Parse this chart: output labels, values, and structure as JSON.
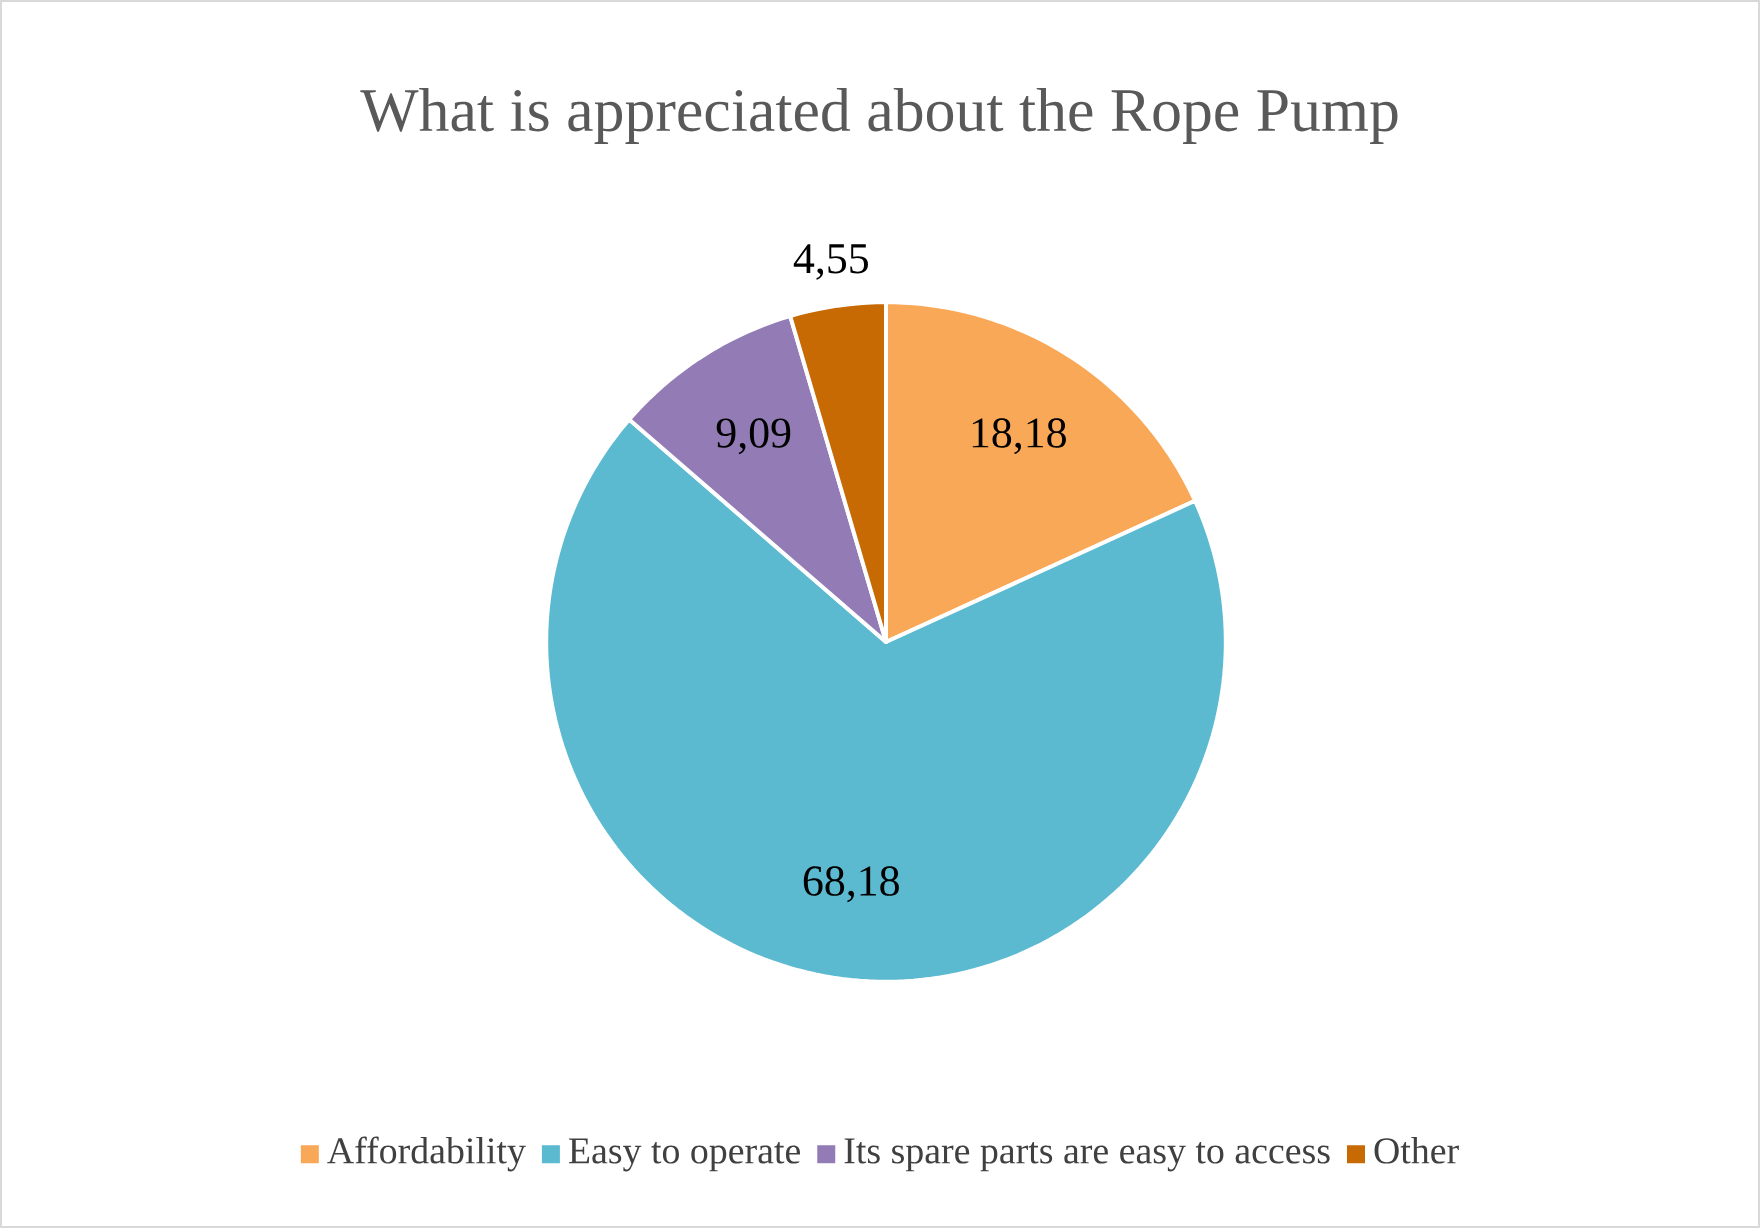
{
  "chart_data": {
    "type": "pie",
    "title": "What is appreciated about the Rope Pump",
    "categories": [
      "Affordability",
      "Easy to operate",
      "Its spare parts are easy to access",
      "Other"
    ],
    "values": [
      18.18,
      68.18,
      9.09,
      4.55
    ],
    "value_labels": [
      "18,18",
      "68,18",
      "9,09",
      "4,55"
    ],
    "colors": [
      "#f9a857",
      "#5bb9d0",
      "#937cb5",
      "#c76a04"
    ],
    "legend": "bottom"
  }
}
